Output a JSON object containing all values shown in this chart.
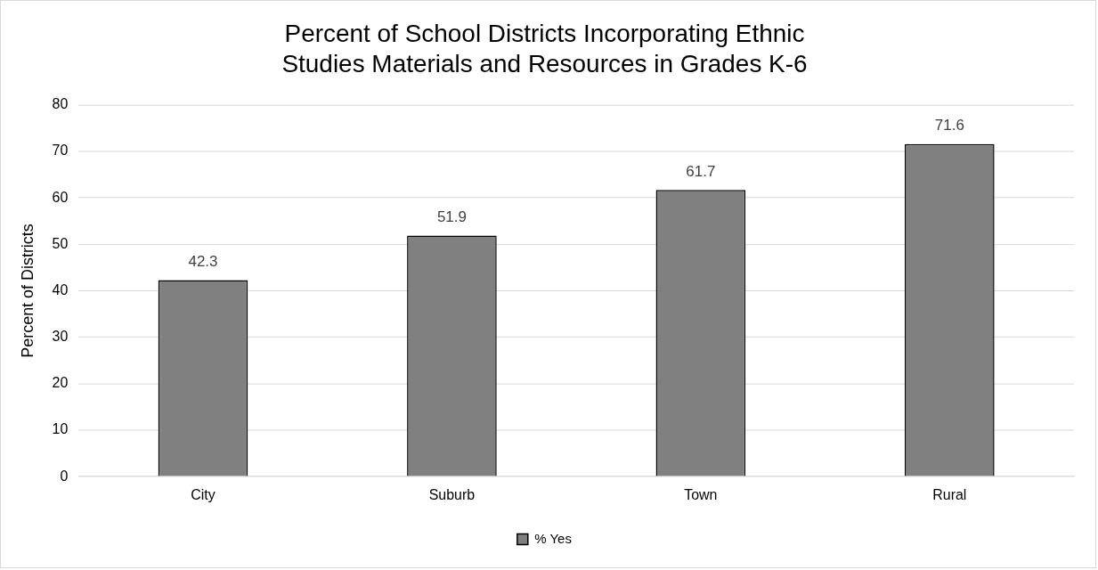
{
  "chart_data": {
    "type": "bar",
    "title": "Percent of School Districts Incorporating Ethnic Studies Materials and Resources in Grades K-6",
    "ylabel": "Percent of Districts",
    "categories": [
      "City",
      "Suburb",
      "Town",
      "Rural"
    ],
    "series": [
      {
        "name": "% Yes",
        "color": "#808080",
        "values": [
          42.3,
          51.9,
          61.7,
          71.6
        ]
      }
    ],
    "ylim": [
      0,
      80
    ],
    "yticks": [
      0,
      10,
      20,
      30,
      40,
      50,
      60,
      70,
      80
    ],
    "grid": "y",
    "legend": "bottom",
    "data_labels": true
  }
}
